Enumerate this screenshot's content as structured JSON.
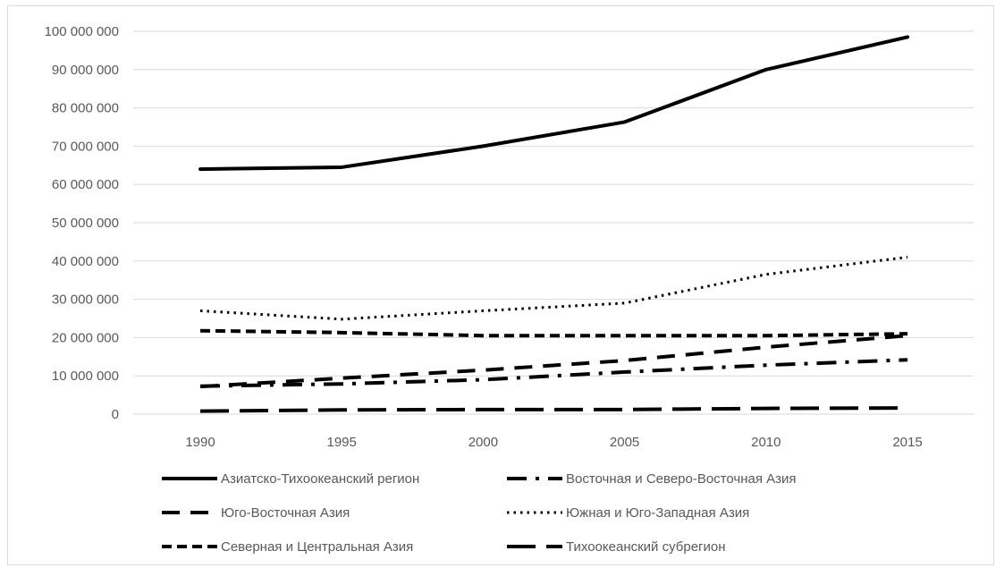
{
  "chart_data": {
    "type": "line",
    "x": [
      1990,
      1995,
      2000,
      2005,
      2010,
      2015
    ],
    "ylim": [
      0,
      100000000
    ],
    "y_ticks": [
      "0",
      "10 000 000",
      "20 000 000",
      "30 000 000",
      "40 000 000",
      "50 000 000",
      "60 000 000",
      "70 000 000",
      "80 000 000",
      "90 000 000",
      "100 000 000"
    ],
    "y_tick_values": [
      0,
      10000000,
      20000000,
      30000000,
      40000000,
      50000000,
      60000000,
      70000000,
      80000000,
      90000000,
      100000000
    ],
    "x_ticks": [
      "1990",
      "1995",
      "2000",
      "2005",
      "2010",
      "2015"
    ],
    "grid": "horizontal",
    "legend_position": "bottom",
    "series": [
      {
        "name": "Азиатско-Тихоокеанский регион",
        "style": "solid",
        "values": [
          64000000,
          64500000,
          70000000,
          76300000,
          90000000,
          98500000
        ]
      },
      {
        "name": "Восточная и Северо-Восточная Азия",
        "style": "dash-dot",
        "values": [
          7300000,
          7900000,
          9000000,
          11000000,
          12800000,
          14200000
        ]
      },
      {
        "name": "Юго-Восточная Азия",
        "style": "long-dash",
        "values": [
          7200000,
          9400000,
          11500000,
          14000000,
          17500000,
          20500000
        ]
      },
      {
        "name": "Южная и Юго-Западная Азия",
        "style": "dotted",
        "values": [
          27000000,
          24800000,
          27000000,
          29000000,
          36500000,
          41000000
        ]
      },
      {
        "name": "Северная и Центральная Азия",
        "style": "dashed",
        "values": [
          21800000,
          21300000,
          20500000,
          20500000,
          20500000,
          21000000
        ]
      },
      {
        "name": "Тихоокеанский субрегион",
        "style": "long-dash-heavy",
        "values": [
          800000,
          1100000,
          1200000,
          1200000,
          1500000,
          1600000
        ]
      }
    ],
    "line_color": "#000000",
    "grid_color": "#d9d9d9",
    "text_color": "#595959"
  }
}
